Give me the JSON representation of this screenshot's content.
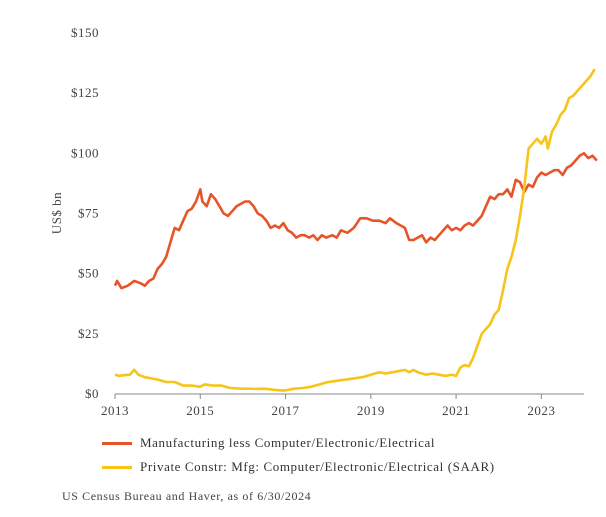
{
  "chart_data": {
    "type": "line",
    "ylabel": "US$ bn",
    "xlim": [
      2013,
      2024
    ],
    "ylim": [
      0,
      150
    ],
    "x_ticks": [
      2013,
      2015,
      2017,
      2019,
      2021,
      2023
    ],
    "x_tick_labels": [
      "2013",
      "2015",
      "2017",
      "2019",
      "2021",
      "2023"
    ],
    "y_ticks": [
      0,
      25,
      50,
      75,
      100,
      125,
      150
    ],
    "y_tick_labels": [
      "$0",
      "$25",
      "$50",
      "$75",
      "$100",
      "$125",
      "$150"
    ],
    "grid": false,
    "legend_position": "bottom",
    "series": [
      {
        "name": "Manufacturing less Computer/Electronic/Electrical",
        "color": "#e8542a",
        "points": [
          [
            2013.0,
            45
          ],
          [
            2013.05,
            47
          ],
          [
            2013.15,
            44
          ],
          [
            2013.3,
            45
          ],
          [
            2013.45,
            47
          ],
          [
            2013.6,
            46
          ],
          [
            2013.7,
            45
          ],
          [
            2013.8,
            47
          ],
          [
            2013.9,
            48
          ],
          [
            2014.0,
            52
          ],
          [
            2014.1,
            54
          ],
          [
            2014.2,
            57
          ],
          [
            2014.3,
            63
          ],
          [
            2014.4,
            69
          ],
          [
            2014.5,
            68
          ],
          [
            2014.6,
            72
          ],
          [
            2014.7,
            76
          ],
          [
            2014.8,
            77
          ],
          [
            2014.9,
            80
          ],
          [
            2015.0,
            85
          ],
          [
            2015.05,
            80
          ],
          [
            2015.15,
            78
          ],
          [
            2015.25,
            83
          ],
          [
            2015.35,
            81
          ],
          [
            2015.45,
            78
          ],
          [
            2015.55,
            75
          ],
          [
            2015.65,
            74
          ],
          [
            2015.75,
            76
          ],
          [
            2015.85,
            78
          ],
          [
            2015.95,
            79
          ],
          [
            2016.05,
            80
          ],
          [
            2016.15,
            80
          ],
          [
            2016.25,
            78
          ],
          [
            2016.35,
            75
          ],
          [
            2016.45,
            74
          ],
          [
            2016.55,
            72
          ],
          [
            2016.65,
            69
          ],
          [
            2016.75,
            70
          ],
          [
            2016.85,
            69
          ],
          [
            2016.95,
            71
          ],
          [
            2017.05,
            68
          ],
          [
            2017.15,
            67
          ],
          [
            2017.25,
            65
          ],
          [
            2017.35,
            66
          ],
          [
            2017.45,
            66
          ],
          [
            2017.55,
            65
          ],
          [
            2017.65,
            66
          ],
          [
            2017.75,
            64
          ],
          [
            2017.85,
            66
          ],
          [
            2017.95,
            65
          ],
          [
            2018.1,
            66
          ],
          [
            2018.2,
            65
          ],
          [
            2018.3,
            68
          ],
          [
            2018.45,
            67
          ],
          [
            2018.6,
            69
          ],
          [
            2018.75,
            73
          ],
          [
            2018.9,
            73
          ],
          [
            2019.05,
            72
          ],
          [
            2019.2,
            72
          ],
          [
            2019.35,
            71
          ],
          [
            2019.45,
            73
          ],
          [
            2019.6,
            71
          ],
          [
            2019.7,
            70
          ],
          [
            2019.8,
            69
          ],
          [
            2019.9,
            64
          ],
          [
            2020.0,
            64
          ],
          [
            2020.1,
            65
          ],
          [
            2020.2,
            66
          ],
          [
            2020.3,
            63
          ],
          [
            2020.4,
            65
          ],
          [
            2020.5,
            64
          ],
          [
            2020.6,
            66
          ],
          [
            2020.7,
            68
          ],
          [
            2020.8,
            70
          ],
          [
            2020.9,
            68
          ],
          [
            2021.0,
            69
          ],
          [
            2021.1,
            68
          ],
          [
            2021.2,
            70
          ],
          [
            2021.3,
            71
          ],
          [
            2021.4,
            70
          ],
          [
            2021.5,
            72
          ],
          [
            2021.6,
            74
          ],
          [
            2021.7,
            78
          ],
          [
            2021.8,
            82
          ],
          [
            2021.9,
            81
          ],
          [
            2022.0,
            83
          ],
          [
            2022.1,
            83
          ],
          [
            2022.2,
            85
          ],
          [
            2022.3,
            82
          ],
          [
            2022.4,
            89
          ],
          [
            2022.5,
            88
          ],
          [
            2022.6,
            84
          ],
          [
            2022.7,
            87
          ],
          [
            2022.8,
            86
          ],
          [
            2022.9,
            90
          ],
          [
            2023.0,
            92
          ],
          [
            2023.1,
            91
          ],
          [
            2023.2,
            92
          ],
          [
            2023.3,
            93
          ],
          [
            2023.4,
            93
          ],
          [
            2023.5,
            91
          ],
          [
            2023.6,
            94
          ],
          [
            2023.7,
            95
          ],
          [
            2023.8,
            97
          ],
          [
            2023.9,
            99
          ],
          [
            2024.0,
            100
          ],
          [
            2024.1,
            98
          ],
          [
            2024.2,
            99
          ],
          [
            2024.3,
            97
          ]
        ]
      },
      {
        "name": "Private Constr: Mfg: Computer/Electronic/Electrical (SAAR)",
        "color": "#f7c418",
        "points": [
          [
            2013.0,
            8
          ],
          [
            2013.1,
            7.5
          ],
          [
            2013.2,
            7.8
          ],
          [
            2013.35,
            8
          ],
          [
            2013.45,
            10
          ],
          [
            2013.55,
            8
          ],
          [
            2013.7,
            7
          ],
          [
            2013.85,
            6.5
          ],
          [
            2014.0,
            6
          ],
          [
            2014.2,
            5
          ],
          [
            2014.4,
            5
          ],
          [
            2014.6,
            3.5
          ],
          [
            2014.8,
            3.5
          ],
          [
            2015.0,
            3
          ],
          [
            2015.1,
            4
          ],
          [
            2015.3,
            3.5
          ],
          [
            2015.5,
            3.5
          ],
          [
            2015.7,
            2.5
          ],
          [
            2015.9,
            2.3
          ],
          [
            2016.1,
            2.2
          ],
          [
            2016.3,
            2.1
          ],
          [
            2016.5,
            2.2
          ],
          [
            2016.7,
            1.8
          ],
          [
            2016.9,
            1.5
          ],
          [
            2017.0,
            1.5
          ],
          [
            2017.2,
            2.2
          ],
          [
            2017.4,
            2.5
          ],
          [
            2017.6,
            3
          ],
          [
            2017.8,
            4
          ],
          [
            2018.0,
            5
          ],
          [
            2018.2,
            5.5
          ],
          [
            2018.4,
            6
          ],
          [
            2018.6,
            6.5
          ],
          [
            2018.8,
            7
          ],
          [
            2019.0,
            8
          ],
          [
            2019.2,
            9
          ],
          [
            2019.35,
            8.5
          ],
          [
            2019.5,
            9
          ],
          [
            2019.65,
            9.5
          ],
          [
            2019.8,
            10
          ],
          [
            2019.9,
            9
          ],
          [
            2020.0,
            10
          ],
          [
            2020.1,
            9
          ],
          [
            2020.2,
            8.5
          ],
          [
            2020.3,
            8
          ],
          [
            2020.45,
            8.5
          ],
          [
            2020.6,
            8
          ],
          [
            2020.75,
            7.5
          ],
          [
            2020.9,
            8
          ],
          [
            2021.0,
            7.5
          ],
          [
            2021.1,
            11
          ],
          [
            2021.2,
            12
          ],
          [
            2021.3,
            11.5
          ],
          [
            2021.4,
            15
          ],
          [
            2021.5,
            20
          ],
          [
            2021.6,
            25
          ],
          [
            2021.7,
            27
          ],
          [
            2021.8,
            29
          ],
          [
            2021.9,
            33
          ],
          [
            2022.0,
            35
          ],
          [
            2022.1,
            43
          ],
          [
            2022.2,
            52
          ],
          [
            2022.3,
            57
          ],
          [
            2022.4,
            64
          ],
          [
            2022.5,
            74
          ],
          [
            2022.6,
            86
          ],
          [
            2022.7,
            102
          ],
          [
            2022.8,
            104
          ],
          [
            2022.9,
            106
          ],
          [
            2023.0,
            104
          ],
          [
            2023.1,
            107
          ],
          [
            2023.15,
            102
          ],
          [
            2023.25,
            109
          ],
          [
            2023.35,
            112
          ],
          [
            2023.45,
            116
          ],
          [
            2023.55,
            118
          ],
          [
            2023.65,
            123
          ],
          [
            2023.75,
            124
          ],
          [
            2023.85,
            126
          ],
          [
            2023.95,
            128
          ],
          [
            2024.05,
            130
          ],
          [
            2024.15,
            132
          ],
          [
            2024.25,
            135
          ]
        ]
      }
    ],
    "source": "US Census Bureau and Haver, as of 6/30/2024"
  }
}
